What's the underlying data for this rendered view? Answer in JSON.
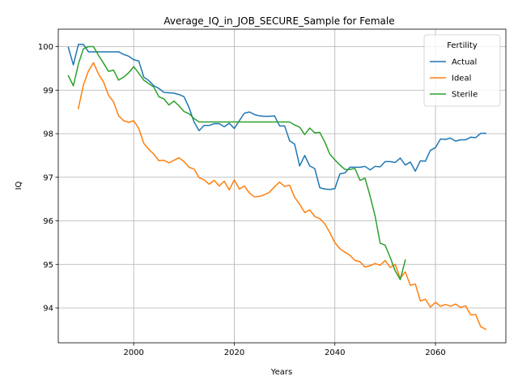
{
  "chart_data": {
    "type": "line",
    "title": "Average_IQ_in_JOB_SECURE_Sample for Female",
    "xlabel": "Years",
    "ylabel": "IQ",
    "xlim": [
      1985,
      2074
    ],
    "ylim": [
      93.2,
      100.4
    ],
    "xticks": [
      2000,
      2020,
      2040,
      2060
    ],
    "yticks": [
      94,
      95,
      96,
      97,
      98,
      99,
      100
    ],
    "grid": true,
    "legend": {
      "title": "Fertility",
      "position": "top-right"
    },
    "series": [
      {
        "name": "Actual",
        "color": "#1f77b4",
        "x": [
          1987,
          1988,
          1989,
          1990,
          1991,
          1992,
          1993,
          1994,
          1995,
          1996,
          1997,
          1998,
          1999,
          2000,
          2001,
          2002,
          2003,
          2004,
          2005,
          2006,
          2007,
          2008,
          2009,
          2010,
          2011,
          2012,
          2013,
          2014,
          2015,
          2016,
          2017,
          2018,
          2019,
          2020,
          2021,
          2022,
          2023,
          2024,
          2025,
          2026,
          2027,
          2028,
          2029,
          2030,
          2031,
          2032,
          2033,
          2034,
          2035,
          2036,
          2037,
          2038,
          2039,
          2040,
          2041,
          2042,
          2043,
          2044,
          2045,
          2046,
          2047,
          2048,
          2049,
          2050,
          2051,
          2052,
          2053,
          2054,
          2055,
          2056,
          2057,
          2058,
          2059,
          2060,
          2061,
          2062,
          2063,
          2064,
          2065,
          2066,
          2067,
          2068,
          2069,
          2070
        ],
        "y": [
          99.98,
          99.58,
          100.05,
          100.05,
          99.88,
          99.88,
          99.88,
          99.88,
          99.88,
          99.88,
          99.88,
          99.82,
          99.78,
          99.7,
          99.67,
          99.3,
          99.22,
          99.1,
          99.04,
          98.95,
          98.94,
          98.93,
          98.9,
          98.85,
          98.6,
          98.27,
          98.07,
          98.19,
          98.19,
          98.23,
          98.23,
          98.16,
          98.24,
          98.12,
          98.3,
          98.47,
          98.5,
          98.44,
          98.41,
          98.4,
          98.4,
          98.41,
          98.18,
          98.18,
          97.84,
          97.76,
          97.26,
          97.5,
          97.26,
          97.2,
          96.76,
          96.73,
          96.72,
          96.74,
          97.08,
          97.1,
          97.23,
          97.23,
          97.23,
          97.25,
          97.17,
          97.25,
          97.24,
          97.36,
          97.36,
          97.34,
          97.44,
          97.28,
          97.35,
          97.14,
          97.38,
          97.37,
          97.62,
          97.68,
          97.88,
          97.87,
          97.9,
          97.83,
          97.86,
          97.86,
          97.92,
          97.91,
          98.01,
          98.01
        ]
      },
      {
        "name": "Ideal",
        "color": "#ff7f0e",
        "x": [
          1989,
          1990,
          1991,
          1992,
          1993,
          1994,
          1995,
          1996,
          1997,
          1998,
          1999,
          2000,
          2001,
          2002,
          2003,
          2004,
          2005,
          2006,
          2007,
          2008,
          2009,
          2010,
          2011,
          2012,
          2013,
          2014,
          2015,
          2016,
          2017,
          2018,
          2019,
          2020,
          2021,
          2022,
          2023,
          2024,
          2025,
          2026,
          2027,
          2028,
          2029,
          2030,
          2031,
          2032,
          2033,
          2034,
          2035,
          2036,
          2037,
          2038,
          2039,
          2040,
          2041,
          2042,
          2043,
          2044,
          2045,
          2046,
          2047,
          2048,
          2049,
          2050,
          2051,
          2052,
          2053,
          2054,
          2055,
          2056,
          2057,
          2058,
          2059,
          2060,
          2061,
          2062,
          2063,
          2064,
          2065,
          2066,
          2067,
          2068,
          2069,
          2070
        ],
        "y": [
          98.58,
          99.12,
          99.44,
          99.63,
          99.37,
          99.19,
          98.88,
          98.73,
          98.41,
          98.3,
          98.26,
          98.3,
          98.12,
          97.78,
          97.64,
          97.53,
          97.38,
          97.39,
          97.33,
          97.39,
          97.45,
          97.36,
          97.23,
          97.19,
          96.99,
          96.94,
          96.84,
          96.93,
          96.8,
          96.91,
          96.71,
          96.94,
          96.73,
          96.8,
          96.64,
          96.55,
          96.56,
          96.6,
          96.66,
          96.78,
          96.89,
          96.79,
          96.82,
          96.54,
          96.38,
          96.19,
          96.25,
          96.1,
          96.05,
          95.93,
          95.73,
          95.5,
          95.36,
          95.28,
          95.21,
          95.09,
          95.06,
          94.94,
          94.97,
          95.02,
          94.98,
          95.09,
          94.93,
          95.0,
          94.68,
          94.83,
          94.52,
          94.55,
          94.16,
          94.2,
          94.02,
          94.13,
          94.04,
          94.08,
          94.04,
          94.09,
          94.01,
          94.05,
          93.84,
          93.85,
          93.57,
          93.51
        ]
      },
      {
        "name": "Sterile",
        "color": "#2ca02c",
        "x": [
          1987,
          1988,
          1989,
          1990,
          1991,
          1992,
          1993,
          1994,
          1995,
          1996,
          1997,
          1998,
          1999,
          2000,
          2001,
          2002,
          2003,
          2004,
          2005,
          2006,
          2007,
          2008,
          2009,
          2010,
          2011,
          2012,
          2013,
          2014,
          2015,
          2016,
          2017,
          2018,
          2019,
          2020,
          2021,
          2022,
          2023,
          2024,
          2025,
          2026,
          2027,
          2028,
          2029,
          2030,
          2031,
          2032,
          2033,
          2034,
          2035,
          2036,
          2037,
          2038,
          2039,
          2040,
          2041,
          2042,
          2043,
          2044,
          2045,
          2046,
          2047,
          2048,
          2049,
          2050,
          2051,
          2052,
          2053,
          2054
        ],
        "y": [
          99.33,
          99.1,
          99.6,
          99.95,
          100.0,
          100.0,
          99.8,
          99.62,
          99.43,
          99.46,
          99.23,
          99.3,
          99.4,
          99.54,
          99.39,
          99.23,
          99.15,
          99.07,
          98.85,
          98.8,
          98.66,
          98.75,
          98.64,
          98.51,
          98.46,
          98.35,
          98.27,
          98.27,
          98.27,
          98.27,
          98.27,
          98.27,
          98.27,
          98.27,
          98.27,
          98.27,
          98.27,
          98.27,
          98.27,
          98.27,
          98.27,
          98.27,
          98.27,
          98.27,
          98.27,
          98.2,
          98.15,
          97.98,
          98.13,
          98.02,
          98.03,
          97.81,
          97.53,
          97.4,
          97.28,
          97.18,
          97.18,
          97.2,
          96.93,
          96.98,
          96.57,
          96.11,
          95.49,
          95.44,
          95.16,
          94.85,
          94.65,
          95.1
        ]
      }
    ]
  }
}
